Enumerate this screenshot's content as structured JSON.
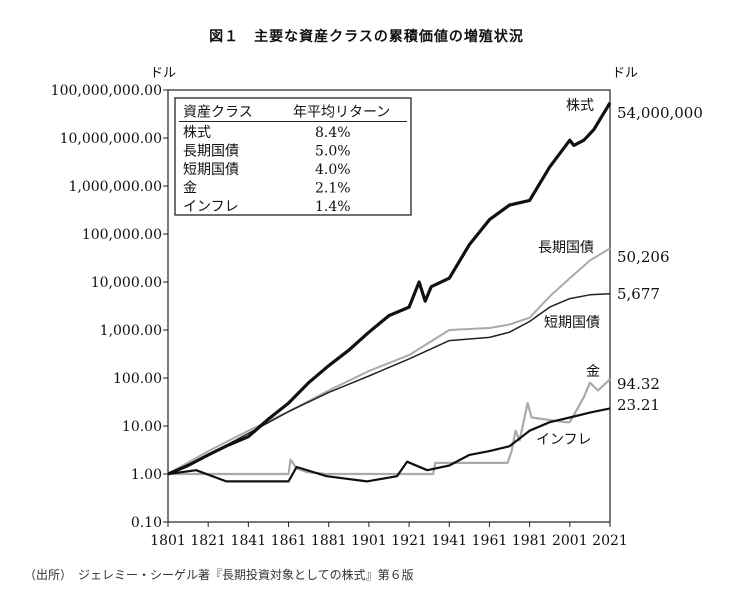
{
  "title": "図１　主要な資産クラスの累積価値の増殖状況",
  "y_unit_left": "ドル",
  "y_unit_right": "ドル",
  "source": "（出所）　ジェレミー・シーゲル著『長期投資対象としての株式』第６版",
  "colors": {
    "stocks": "#111111",
    "long_bonds": "#aaaaaa",
    "short_bills": "#222222",
    "gold": "#aaaaaa",
    "inflation": "#111111"
  },
  "legend_table": {
    "header": [
      "資産クラス",
      "年平均リターン"
    ],
    "rows": [
      [
        "株式",
        "8.4%"
      ],
      [
        "長期国債",
        "5.0%"
      ],
      [
        "短期国債",
        "4.0%"
      ],
      [
        "金",
        "2.1%"
      ],
      [
        "インフレ",
        "1.4%"
      ]
    ]
  },
  "chart_data": {
    "type": "line",
    "y_scale": "log",
    "ylim": [
      0.1,
      100000000
    ],
    "xlim": [
      1801,
      2021
    ],
    "x_ticks": [
      "1801",
      "1821",
      "1841",
      "1861",
      "1881",
      "1901",
      "1921",
      "1941",
      "1961",
      "1981",
      "2001",
      "2021"
    ],
    "y_ticks": [
      "0.10",
      "1.00",
      "10.00",
      "100.00",
      "1,000.00",
      "10,000.00",
      "100,000.00",
      "1,000,000.00",
      "10,000,000.00",
      "100,000,000.00"
    ],
    "series": [
      {
        "name": "株式",
        "end_label": "54,000,000",
        "x": [
          1801,
          1811,
          1821,
          1831,
          1841,
          1851,
          1861,
          1871,
          1881,
          1891,
          1901,
          1911,
          1921,
          1926,
          1929,
          1932,
          1941,
          1951,
          1961,
          1971,
          1981,
          1991,
          2001,
          2003,
          2008,
          2013,
          2021
        ],
        "y": [
          1,
          1.5,
          2.5,
          4,
          6,
          14,
          30,
          80,
          180,
          380,
          900,
          2000,
          3000,
          10000,
          4000,
          8000,
          12000,
          60000,
          200000,
          400000,
          500000,
          2500000,
          9000000,
          7000000,
          9000000,
          15000000,
          54000000
        ]
      },
      {
        "name": "長期国債",
        "end_label": "50,206",
        "x": [
          1801,
          1821,
          1841,
          1861,
          1881,
          1901,
          1921,
          1941,
          1961,
          1971,
          1981,
          1991,
          2001,
          2011,
          2021
        ],
        "y": [
          1,
          3,
          8,
          20,
          55,
          140,
          300,
          1000,
          1100,
          1300,
          1800,
          5000,
          12000,
          28000,
          50206
        ]
      },
      {
        "name": "短期国債",
        "end_label": "5,677",
        "x": [
          1801,
          1821,
          1841,
          1861,
          1881,
          1901,
          1921,
          1941,
          1961,
          1971,
          1981,
          1991,
          2001,
          2011,
          2021
        ],
        "y": [
          1,
          2.5,
          7,
          20,
          50,
          110,
          250,
          600,
          700,
          900,
          1500,
          3000,
          4500,
          5400,
          5677
        ]
      },
      {
        "name": "金",
        "end_label": "94.32",
        "x": [
          1801,
          1861,
          1862,
          1865,
          1870,
          1880,
          1933,
          1934,
          1970,
          1972,
          1974,
          1976,
          1980,
          1982,
          1999,
          2001,
          2008,
          2011,
          2015,
          2021
        ],
        "y": [
          1,
          1,
          2,
          1.3,
          1.1,
          1,
          1,
          1.7,
          1.7,
          3,
          8,
          5,
          30,
          15,
          12,
          12,
          40,
          80,
          55,
          94.32
        ]
      },
      {
        "name": "インフレ",
        "end_label": "23.21",
        "x": [
          1801,
          1815,
          1830,
          1861,
          1865,
          1880,
          1900,
          1915,
          1920,
          1930,
          1941,
          1951,
          1961,
          1971,
          1981,
          1991,
          2001,
          2011,
          2021
        ],
        "y": [
          1,
          1.2,
          0.7,
          0.7,
          1.4,
          0.9,
          0.7,
          0.9,
          1.8,
          1.2,
          1.5,
          2.5,
          3,
          3.8,
          8,
          12,
          15,
          19,
          23.21
        ]
      }
    ]
  }
}
